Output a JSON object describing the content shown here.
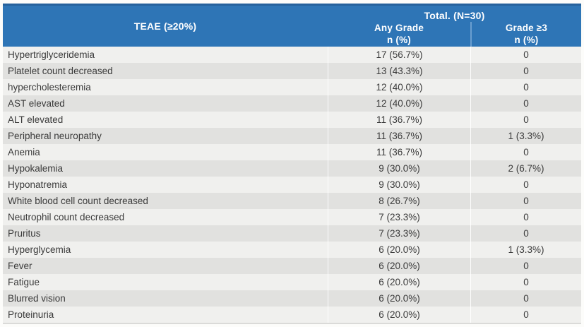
{
  "table": {
    "header": {
      "teae_label": "TEAE (≥20%)",
      "total_label": "Total. (N=30)",
      "any_grade_label": "Any Grade",
      "any_grade_sub": "n (%)",
      "grade3_label": "Grade ≥3",
      "grade3_sub": "n (%)"
    },
    "rows": [
      {
        "teae": "Hypertriglyceridemia",
        "any_grade": "17 (56.7%)",
        "grade3": "0"
      },
      {
        "teae": "Platelet count decreased",
        "any_grade": "13 (43.3%)",
        "grade3": "0"
      },
      {
        "teae": "hypercholesteremia",
        "any_grade": "12 (40.0%)",
        "grade3": "0"
      },
      {
        "teae": "AST elevated",
        "any_grade": "12 (40.0%)",
        "grade3": "0"
      },
      {
        "teae": "ALT elevated",
        "any_grade": "11 (36.7%)",
        "grade3": "0"
      },
      {
        "teae": "Peripheral neuropathy",
        "any_grade": "11 (36.7%)",
        "grade3": "1 (3.3%)"
      },
      {
        "teae": "Anemia",
        "any_grade": "11 (36.7%)",
        "grade3": "0"
      },
      {
        "teae": "Hypokalemia",
        "any_grade": "9 (30.0%)",
        "grade3": "2 (6.7%)"
      },
      {
        "teae": "Hyponatremia",
        "any_grade": "9 (30.0%)",
        "grade3": "0"
      },
      {
        "teae": "White blood cell count decreased",
        "any_grade": "8 (26.7%)",
        "grade3": "0"
      },
      {
        "teae": "Neutrophil count decreased",
        "any_grade": "7 (23.3%)",
        "grade3": "0"
      },
      {
        "teae": "Pruritus",
        "any_grade": "7 (23.3%)",
        "grade3": "0"
      },
      {
        "teae": "Hyperglycemia",
        "any_grade": "6 (20.0%)",
        "grade3": "1 (3.3%)"
      },
      {
        "teae": "Fever",
        "any_grade": "6 (20.0%)",
        "grade3": "0"
      },
      {
        "teae": "Fatigue",
        "any_grade": "6 (20.0%)",
        "grade3": "0"
      },
      {
        "teae": "Blurred vision",
        "any_grade": "6 (20.0%)",
        "grade3": "0"
      },
      {
        "teae": "Proteinuria",
        "any_grade": "6 (20.0%)",
        "grade3": "0"
      }
    ]
  },
  "colors": {
    "header_bg": "#2e75b6",
    "header_top_edge": "#26619c",
    "header_divider": "#6b9fd0",
    "header_text": "#ffffff",
    "row_odd": "#f0f0ee",
    "row_even": "#e1e1df",
    "body_text": "#3a3a3a"
  },
  "chart_data": {
    "type": "table",
    "title": "Total. (N=30)",
    "n_total": 30,
    "columns": [
      "TEAE (≥20%)",
      "Any Grade n (%)",
      "Grade ≥3 n (%)"
    ],
    "rows": [
      [
        "Hypertriglyceridemia",
        "17 (56.7%)",
        "0"
      ],
      [
        "Platelet count decreased",
        "13 (43.3%)",
        "0"
      ],
      [
        "hypercholesteremia",
        "12 (40.0%)",
        "0"
      ],
      [
        "AST elevated",
        "12 (40.0%)",
        "0"
      ],
      [
        "ALT elevated",
        "11 (36.7%)",
        "0"
      ],
      [
        "Peripheral neuropathy",
        "11 (36.7%)",
        "1 (3.3%)"
      ],
      [
        "Anemia",
        "11 (36.7%)",
        "0"
      ],
      [
        "Hypokalemia",
        "9 (30.0%)",
        "2 (6.7%)"
      ],
      [
        "Hyponatremia",
        "9 (30.0%)",
        "0"
      ],
      [
        "White blood cell count decreased",
        "8 (26.7%)",
        "0"
      ],
      [
        "Neutrophil count decreased",
        "7 (23.3%)",
        "0"
      ],
      [
        "Pruritus",
        "7 (23.3%)",
        "0"
      ],
      [
        "Hyperglycemia",
        "6 (20.0%)",
        "1 (3.3%)"
      ],
      [
        "Fever",
        "6 (20.0%)",
        "0"
      ],
      [
        "Fatigue",
        "6 (20.0%)",
        "0"
      ],
      [
        "Blurred vision",
        "6 (20.0%)",
        "0"
      ],
      [
        "Proteinuria",
        "6 (20.0%)",
        "0"
      ]
    ],
    "series": [
      {
        "name": "Any Grade n",
        "values": [
          17,
          13,
          12,
          12,
          11,
          11,
          11,
          9,
          9,
          8,
          7,
          7,
          6,
          6,
          6,
          6,
          6
        ]
      },
      {
        "name": "Any Grade %",
        "values": [
          56.7,
          43.3,
          40.0,
          40.0,
          36.7,
          36.7,
          36.7,
          30.0,
          30.0,
          26.7,
          23.3,
          23.3,
          20.0,
          20.0,
          20.0,
          20.0,
          20.0
        ]
      },
      {
        "name": "Grade >=3 n",
        "values": [
          0,
          0,
          0,
          0,
          0,
          1,
          0,
          2,
          0,
          0,
          0,
          0,
          1,
          0,
          0,
          0,
          0
        ]
      },
      {
        "name": "Grade >=3 %",
        "values": [
          0,
          0,
          0,
          0,
          0,
          3.3,
          0,
          6.7,
          0,
          0,
          0,
          0,
          3.3,
          0,
          0,
          0,
          0
        ]
      }
    ]
  }
}
